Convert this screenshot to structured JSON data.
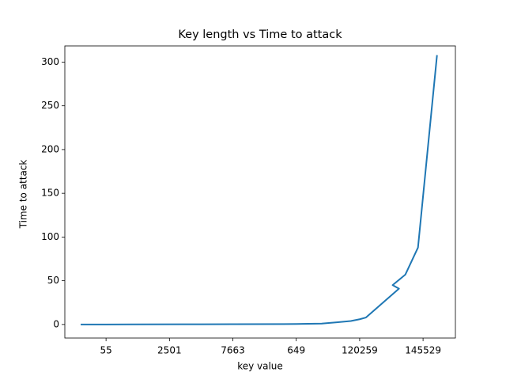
{
  "chart_data": {
    "type": "line",
    "title": "Key length vs Time to attack",
    "x_label": "key value",
    "y_label": "Time to attack",
    "x": [
      0,
      2,
      4,
      8,
      12,
      16,
      17,
      19,
      20.2,
      21.3,
      22,
      22.5,
      25.1,
      24.6,
      25.6,
      26.6,
      28.1
    ],
    "series": [
      {
        "name": "Time to attack",
        "color": "#1f77b4",
        "values": [
          0,
          0,
          0.1,
          0.2,
          0.3,
          0.5,
          0.6,
          1,
          2.5,
          4,
          6,
          8,
          41,
          45,
          57,
          88,
          308
        ]
      }
    ],
    "xlim": [
      -1.25,
      29.55
    ],
    "xticks": [
      {
        "value": 2,
        "label": "55"
      },
      {
        "value": 7,
        "label": "2501"
      },
      {
        "value": 12,
        "label": "7663"
      },
      {
        "value": 17,
        "label": "649"
      },
      {
        "value": 22,
        "label": "120259"
      },
      {
        "value": 27,
        "label": "145529"
      }
    ],
    "ylim": [
      -15.5,
      318.5
    ],
    "yticks": [
      0,
      50,
      100,
      150,
      200,
      250,
      300
    ],
    "grid": false
  }
}
